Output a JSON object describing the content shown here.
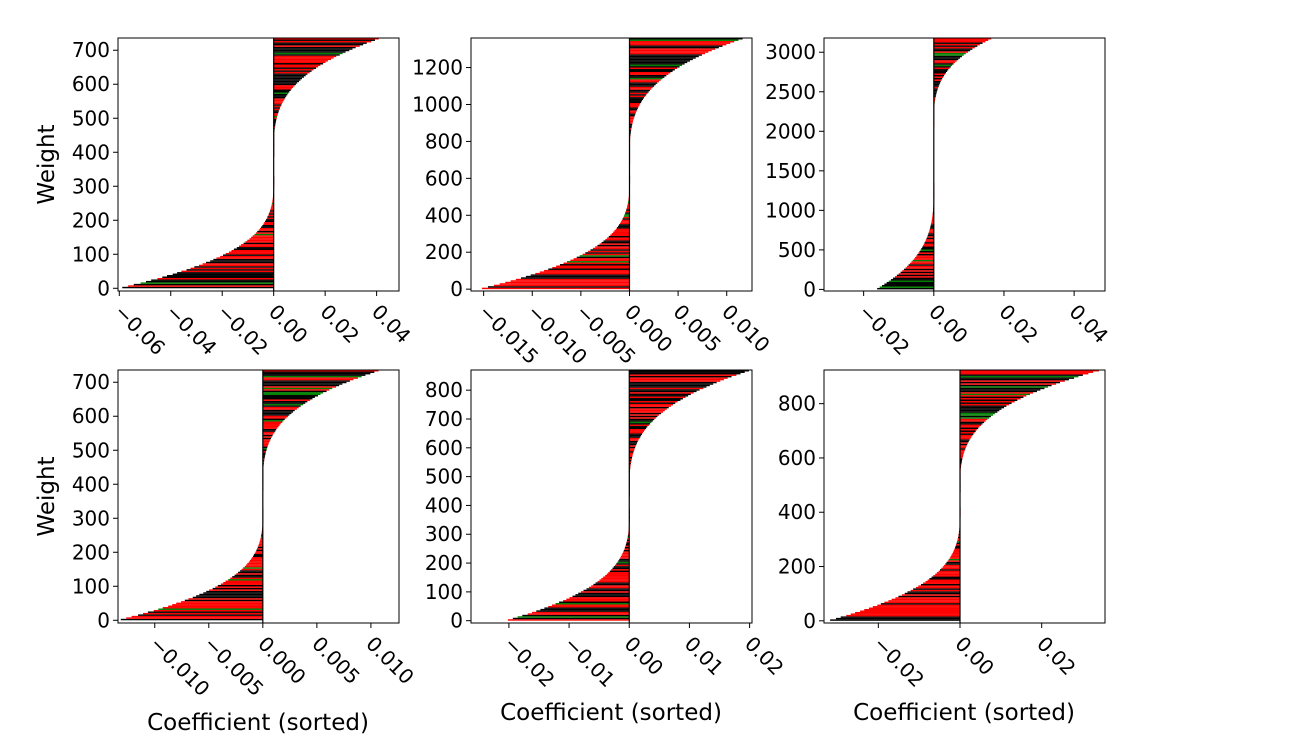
{
  "figure": {
    "colors": {
      "positive": "#000000",
      "negative": "#ff0000",
      "neutral": "#008000",
      "axes": "#000000"
    }
  },
  "chart_data": [
    {
      "type": "bar",
      "orientation": "horizontal",
      "subplot": "top-left",
      "n_weights": 736,
      "xlim": [
        -0.0605,
        0.0487
      ],
      "ylim": [
        -8,
        736
      ],
      "coef_min": -0.06,
      "coef_max": 0.0416,
      "zero_index": 330,
      "split_index": 385,
      "xticks": [
        -0.06,
        -0.04,
        -0.02,
        0.0,
        0.02,
        0.04
      ],
      "xtick_labels": [
        "−0.06",
        "−0.04",
        "−0.02",
        "0.00",
        "0.02",
        "0.04"
      ],
      "yticks": [
        0,
        100,
        200,
        300,
        400,
        500,
        600,
        700
      ],
      "ylabel": "Weight",
      "xlabel": ""
    },
    {
      "type": "bar",
      "orientation": "horizontal",
      "subplot": "top-center",
      "n_weights": 1360,
      "xlim": [
        -0.0163,
        0.0126
      ],
      "ylim": [
        -10,
        1360
      ],
      "coef_min": -0.0155,
      "coef_max": 0.0118,
      "zero_index": 615,
      "split_index": 680,
      "xticks": [
        -0.015,
        -0.01,
        -0.005,
        0.0,
        0.005,
        0.01
      ],
      "xtick_labels": [
        "−0.015",
        "−0.010",
        "−0.005",
        "0.000",
        "0.005",
        "0.010"
      ],
      "yticks": [
        0,
        200,
        400,
        600,
        800,
        1000,
        1200
      ],
      "ylabel": "",
      "xlabel": ""
    },
    {
      "type": "bar",
      "orientation": "horizontal",
      "subplot": "top-right",
      "n_weights": 3180,
      "xlim": [
        -0.0313,
        0.0488
      ],
      "ylim": [
        -20,
        3180
      ],
      "coef_min": -0.0165,
      "coef_max": 0.0168,
      "zero_index": 1350,
      "split_index": 2050,
      "xticks": [
        -0.02,
        0.0,
        0.02,
        0.04
      ],
      "xtick_labels": [
        "−0.02",
        "0.00",
        "0.02",
        "0.04"
      ],
      "yticks": [
        0,
        500,
        1000,
        1500,
        2000,
        2500,
        3000
      ],
      "ylabel": "",
      "xlabel": ""
    },
    {
      "type": "bar",
      "orientation": "horizontal",
      "subplot": "bottom-left",
      "n_weights": 736,
      "xlim": [
        -0.0134,
        0.0126
      ],
      "ylim": [
        -8,
        736
      ],
      "coef_min": -0.0134,
      "coef_max": 0.0109,
      "zero_index": 330,
      "split_index": 380,
      "xticks": [
        -0.01,
        -0.005,
        0.0,
        0.005,
        0.01
      ],
      "xtick_labels": [
        "−0.010",
        "−0.005",
        "0.000",
        "0.005",
        "0.010"
      ],
      "yticks": [
        0,
        100,
        200,
        300,
        400,
        500,
        600,
        700
      ],
      "ylabel": "Weight",
      "xlabel": "Coefficient (sorted)"
    },
    {
      "type": "bar",
      "orientation": "horizontal",
      "subplot": "bottom-center",
      "n_weights": 870,
      "xlim": [
        -0.0263,
        0.0204
      ],
      "ylim": [
        -8,
        870
      ],
      "coef_min": -0.0205,
      "coef_max": 0.0202,
      "zero_index": 390,
      "split_index": 430,
      "xticks": [
        -0.02,
        -0.01,
        0.0,
        0.01,
        0.02
      ],
      "xtick_labels": [
        "−0.02",
        "−0.01",
        "0.00",
        "0.01",
        "0.02"
      ],
      "yticks": [
        0,
        100,
        200,
        300,
        400,
        500,
        600,
        700,
        800
      ],
      "ylabel": "",
      "xlabel": "Coefficient (sorted)"
    },
    {
      "type": "bar",
      "orientation": "horizontal",
      "subplot": "bottom-right",
      "n_weights": 924,
      "xlim": [
        -0.0333,
        0.0355
      ],
      "ylim": [
        -8,
        924
      ],
      "coef_min": -0.0323,
      "coef_max": 0.0345,
      "zero_index": 420,
      "split_index": 470,
      "xticks": [
        -0.02,
        0.0,
        0.02
      ],
      "xtick_labels": [
        "−0.02",
        "0.00",
        "0.02"
      ],
      "yticks": [
        0,
        200,
        400,
        600,
        800
      ],
      "ylabel": "",
      "xlabel": "Coefficient (sorted)"
    }
  ]
}
